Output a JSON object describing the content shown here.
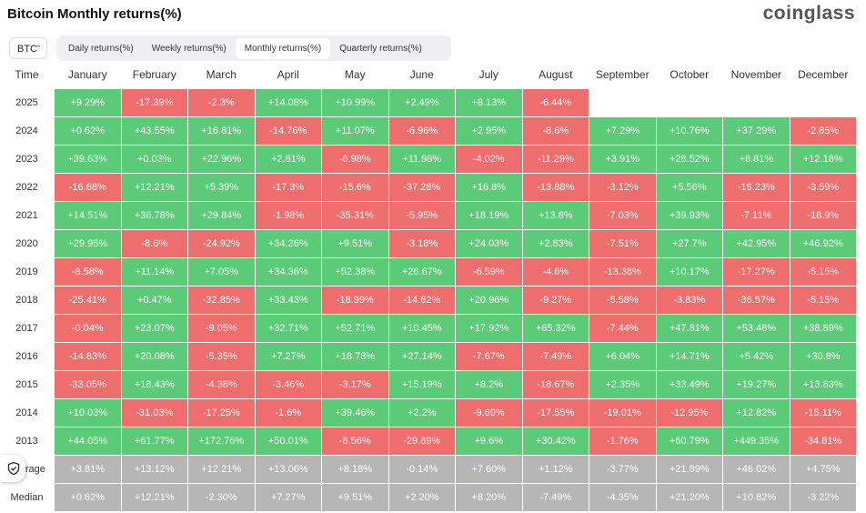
{
  "header": {
    "title": "Bitcoin Monthly returns(%)",
    "brand": "coinglass"
  },
  "controls": {
    "asset": "BTC",
    "tabs": [
      "Daily returns(%)",
      "Weekly returns(%)",
      "Monthly returns(%)",
      "Quarterly returns(%)"
    ],
    "active_tab": 2
  },
  "table": {
    "columns": [
      "Time",
      "January",
      "February",
      "March",
      "April",
      "May",
      "June",
      "July",
      "August",
      "September",
      "October",
      "November",
      "December"
    ],
    "rows": [
      {
        "label": "2025",
        "cells": [
          "+9.29%",
          "-17.39%",
          "-2.3%",
          "+14.08%",
          "+10.99%",
          "+2.49%",
          "+8.13%",
          "-6.44%"
        ]
      },
      {
        "label": "2024",
        "cells": [
          "+0.62%",
          "+43.55%",
          "+16.81%",
          "-14.76%",
          "+11.07%",
          "-6.96%",
          "+2.95%",
          "-8.6%",
          "+7.29%",
          "+10.76%",
          "+37.29%",
          "-2.85%"
        ]
      },
      {
        "label": "2023",
        "cells": [
          "+39.63%",
          "+0.03%",
          "+22.96%",
          "+2.81%",
          "-6.98%",
          "+11.98%",
          "-4.02%",
          "-11.29%",
          "+3.91%",
          "+28.52%",
          "+8.81%",
          "+12.18%"
        ]
      },
      {
        "label": "2022",
        "cells": [
          "-16.68%",
          "+12.21%",
          "+5.39%",
          "-17.3%",
          "-15.6%",
          "-37.28%",
          "+16.8%",
          "-13.88%",
          "-3.12%",
          "+5.56%",
          "-16.23%",
          "-3.59%"
        ]
      },
      {
        "label": "2021",
        "cells": [
          "+14.51%",
          "+36.78%",
          "+29.84%",
          "-1.98%",
          "-35.31%",
          "-5.95%",
          "+18.19%",
          "+13.8%",
          "-7.03%",
          "+39.93%",
          "-7.11%",
          "-18.9%"
        ]
      },
      {
        "label": "2020",
        "cells": [
          "+29.95%",
          "-8.6%",
          "-24.92%",
          "+34.26%",
          "+9.51%",
          "-3.18%",
          "+24.03%",
          "+2.83%",
          "-7.51%",
          "+27.7%",
          "+42.95%",
          "+46.92%"
        ]
      },
      {
        "label": "2019",
        "cells": [
          "-8.58%",
          "+11.14%",
          "+7.05%",
          "+34.36%",
          "+52.38%",
          "+26.67%",
          "-6.59%",
          "-4.6%",
          "-13.38%",
          "+10.17%",
          "-17.27%",
          "-5.15%"
        ]
      },
      {
        "label": "2018",
        "cells": [
          "-25.41%",
          "+0.47%",
          "-32.85%",
          "+33.43%",
          "-18.99%",
          "-14.62%",
          "+20.96%",
          "-9.27%",
          "-5.58%",
          "-3.83%",
          "-36.57%",
          "-5.15%"
        ]
      },
      {
        "label": "2017",
        "cells": [
          "-0.04%",
          "+23.07%",
          "-9.05%",
          "+32.71%",
          "+52.71%",
          "+10.45%",
          "+17.92%",
          "+65.32%",
          "-7.44%",
          "+47.81%",
          "+53.48%",
          "+38.89%"
        ]
      },
      {
        "label": "2016",
        "cells": [
          "-14.83%",
          "+20.08%",
          "-5.35%",
          "+7.27%",
          "+18.78%",
          "+27.14%",
          "-7.67%",
          "-7.49%",
          "+6.04%",
          "+14.71%",
          "+5.42%",
          "+30.8%"
        ]
      },
      {
        "label": "2015",
        "cells": [
          "-33.05%",
          "+18.43%",
          "-4.38%",
          "-3.46%",
          "-3.17%",
          "+15.19%",
          "+8.2%",
          "-18.67%",
          "+2.35%",
          "+33.49%",
          "+19.27%",
          "+13.83%"
        ]
      },
      {
        "label": "2014",
        "cells": [
          "+10.03%",
          "-31.03%",
          "-17.25%",
          "-1.6%",
          "+39.46%",
          "+2.2%",
          "-9.69%",
          "-17.55%",
          "-19.01%",
          "-12.95%",
          "+12.82%",
          "-15.11%"
        ]
      },
      {
        "label": "2013",
        "cells": [
          "+44.05%",
          "+61.77%",
          "+172.76%",
          "+50.01%",
          "-8.56%",
          "-29.89%",
          "+9.6%",
          "+30.42%",
          "-1.76%",
          "+60.79%",
          "+449.35%",
          "-34.81%"
        ]
      }
    ],
    "summary_rows": [
      {
        "label": "Average",
        "cells": [
          "+3.81%",
          "+13.12%",
          "+12.21%",
          "+13.06%",
          "+8.18%",
          "-0.14%",
          "+7.60%",
          "+1.12%",
          "-3.77%",
          "+21.89%",
          "+46.02%",
          "+4.75%"
        ]
      },
      {
        "label": "Median",
        "cells": [
          "+0.62%",
          "+12.21%",
          "-2.30%",
          "+7.27%",
          "+9.51%",
          "+2.20%",
          "+8.20%",
          "-7.49%",
          "-4.35%",
          "+21.20%",
          "+10.82%",
          "-3.22%"
        ]
      }
    ]
  }
}
